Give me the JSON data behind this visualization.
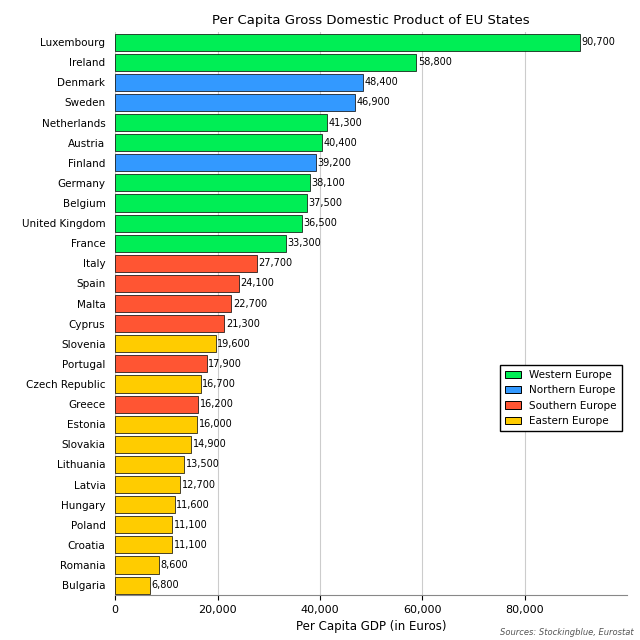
{
  "title": "Per Capita Gross Domestic Product of EU States",
  "xlabel": "Per Capita GDP (in Euros)",
  "source_text": "Sources: Stockingblue, Eurostat",
  "countries": [
    "Luxembourg",
    "Ireland",
    "Denmark",
    "Sweden",
    "Netherlands",
    "Austria",
    "Finland",
    "Germany",
    "Belgium",
    "United Kingdom",
    "France",
    "Italy",
    "Spain",
    "Malta",
    "Cyprus",
    "Slovenia",
    "Portugal",
    "Czech Republic",
    "Greece",
    "Estonia",
    "Slovakia",
    "Lithuania",
    "Latvia",
    "Hungary",
    "Poland",
    "Croatia",
    "Romania",
    "Bulgaria"
  ],
  "values": [
    90700,
    58800,
    48400,
    46900,
    41300,
    40400,
    39200,
    38100,
    37500,
    36500,
    33300,
    27700,
    24100,
    22700,
    21300,
    19600,
    17900,
    16700,
    16200,
    16000,
    14900,
    13500,
    12700,
    11600,
    11100,
    11100,
    8600,
    6800
  ],
  "regions": [
    "Western Europe",
    "Western Europe",
    "Northern Europe",
    "Northern Europe",
    "Western Europe",
    "Western Europe",
    "Northern Europe",
    "Western Europe",
    "Western Europe",
    "Western Europe",
    "Western Europe",
    "Southern Europe",
    "Southern Europe",
    "Southern Europe",
    "Southern Europe",
    "Eastern Europe",
    "Southern Europe",
    "Eastern Europe",
    "Southern Europe",
    "Eastern Europe",
    "Eastern Europe",
    "Eastern Europe",
    "Eastern Europe",
    "Eastern Europe",
    "Eastern Europe",
    "Eastern Europe",
    "Eastern Europe",
    "Eastern Europe"
  ],
  "region_colors": {
    "Western Europe": "#00EE55",
    "Northern Europe": "#3399FF",
    "Southern Europe": "#FF5533",
    "Eastern Europe": "#FFCC00"
  },
  "legend_order": [
    "Western Europe",
    "Northern Europe",
    "Southern Europe",
    "Eastern Europe"
  ],
  "bar_edge_color": "#000000",
  "grid_color": "#CCCCCC",
  "background_color": "#FFFFFF",
  "xlim": [
    0,
    100000
  ],
  "xticks": [
    0,
    20000,
    40000,
    60000,
    80000
  ],
  "xtick_labels": [
    "0",
    "20,000",
    "40,000",
    "60,000",
    "80,000"
  ]
}
